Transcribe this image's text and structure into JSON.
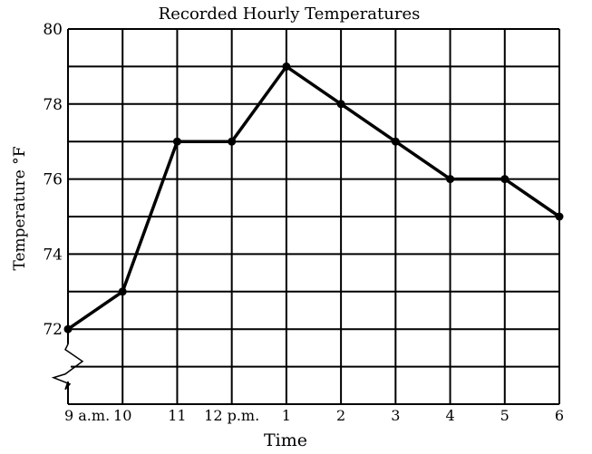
{
  "chart_data": {
    "type": "line",
    "title": "Recorded Hourly Temperatures",
    "xlabel": "Time",
    "ylabel": "Temperature °F",
    "x_tick_labels": [
      "9 a.m.",
      "10",
      "11",
      "12 p.m.",
      "1",
      "2",
      "3",
      "4",
      "5",
      "6"
    ],
    "y_tick_labels": [
      "72",
      "74",
      "76",
      "78",
      "80"
    ],
    "ylim": [
      70,
      80
    ],
    "grid": true,
    "y_axis_break": true,
    "series": [
      {
        "values": [
          72,
          73,
          77,
          77,
          79,
          78,
          77,
          76,
          76,
          75
        ]
      }
    ],
    "line_color": "#000000"
  }
}
